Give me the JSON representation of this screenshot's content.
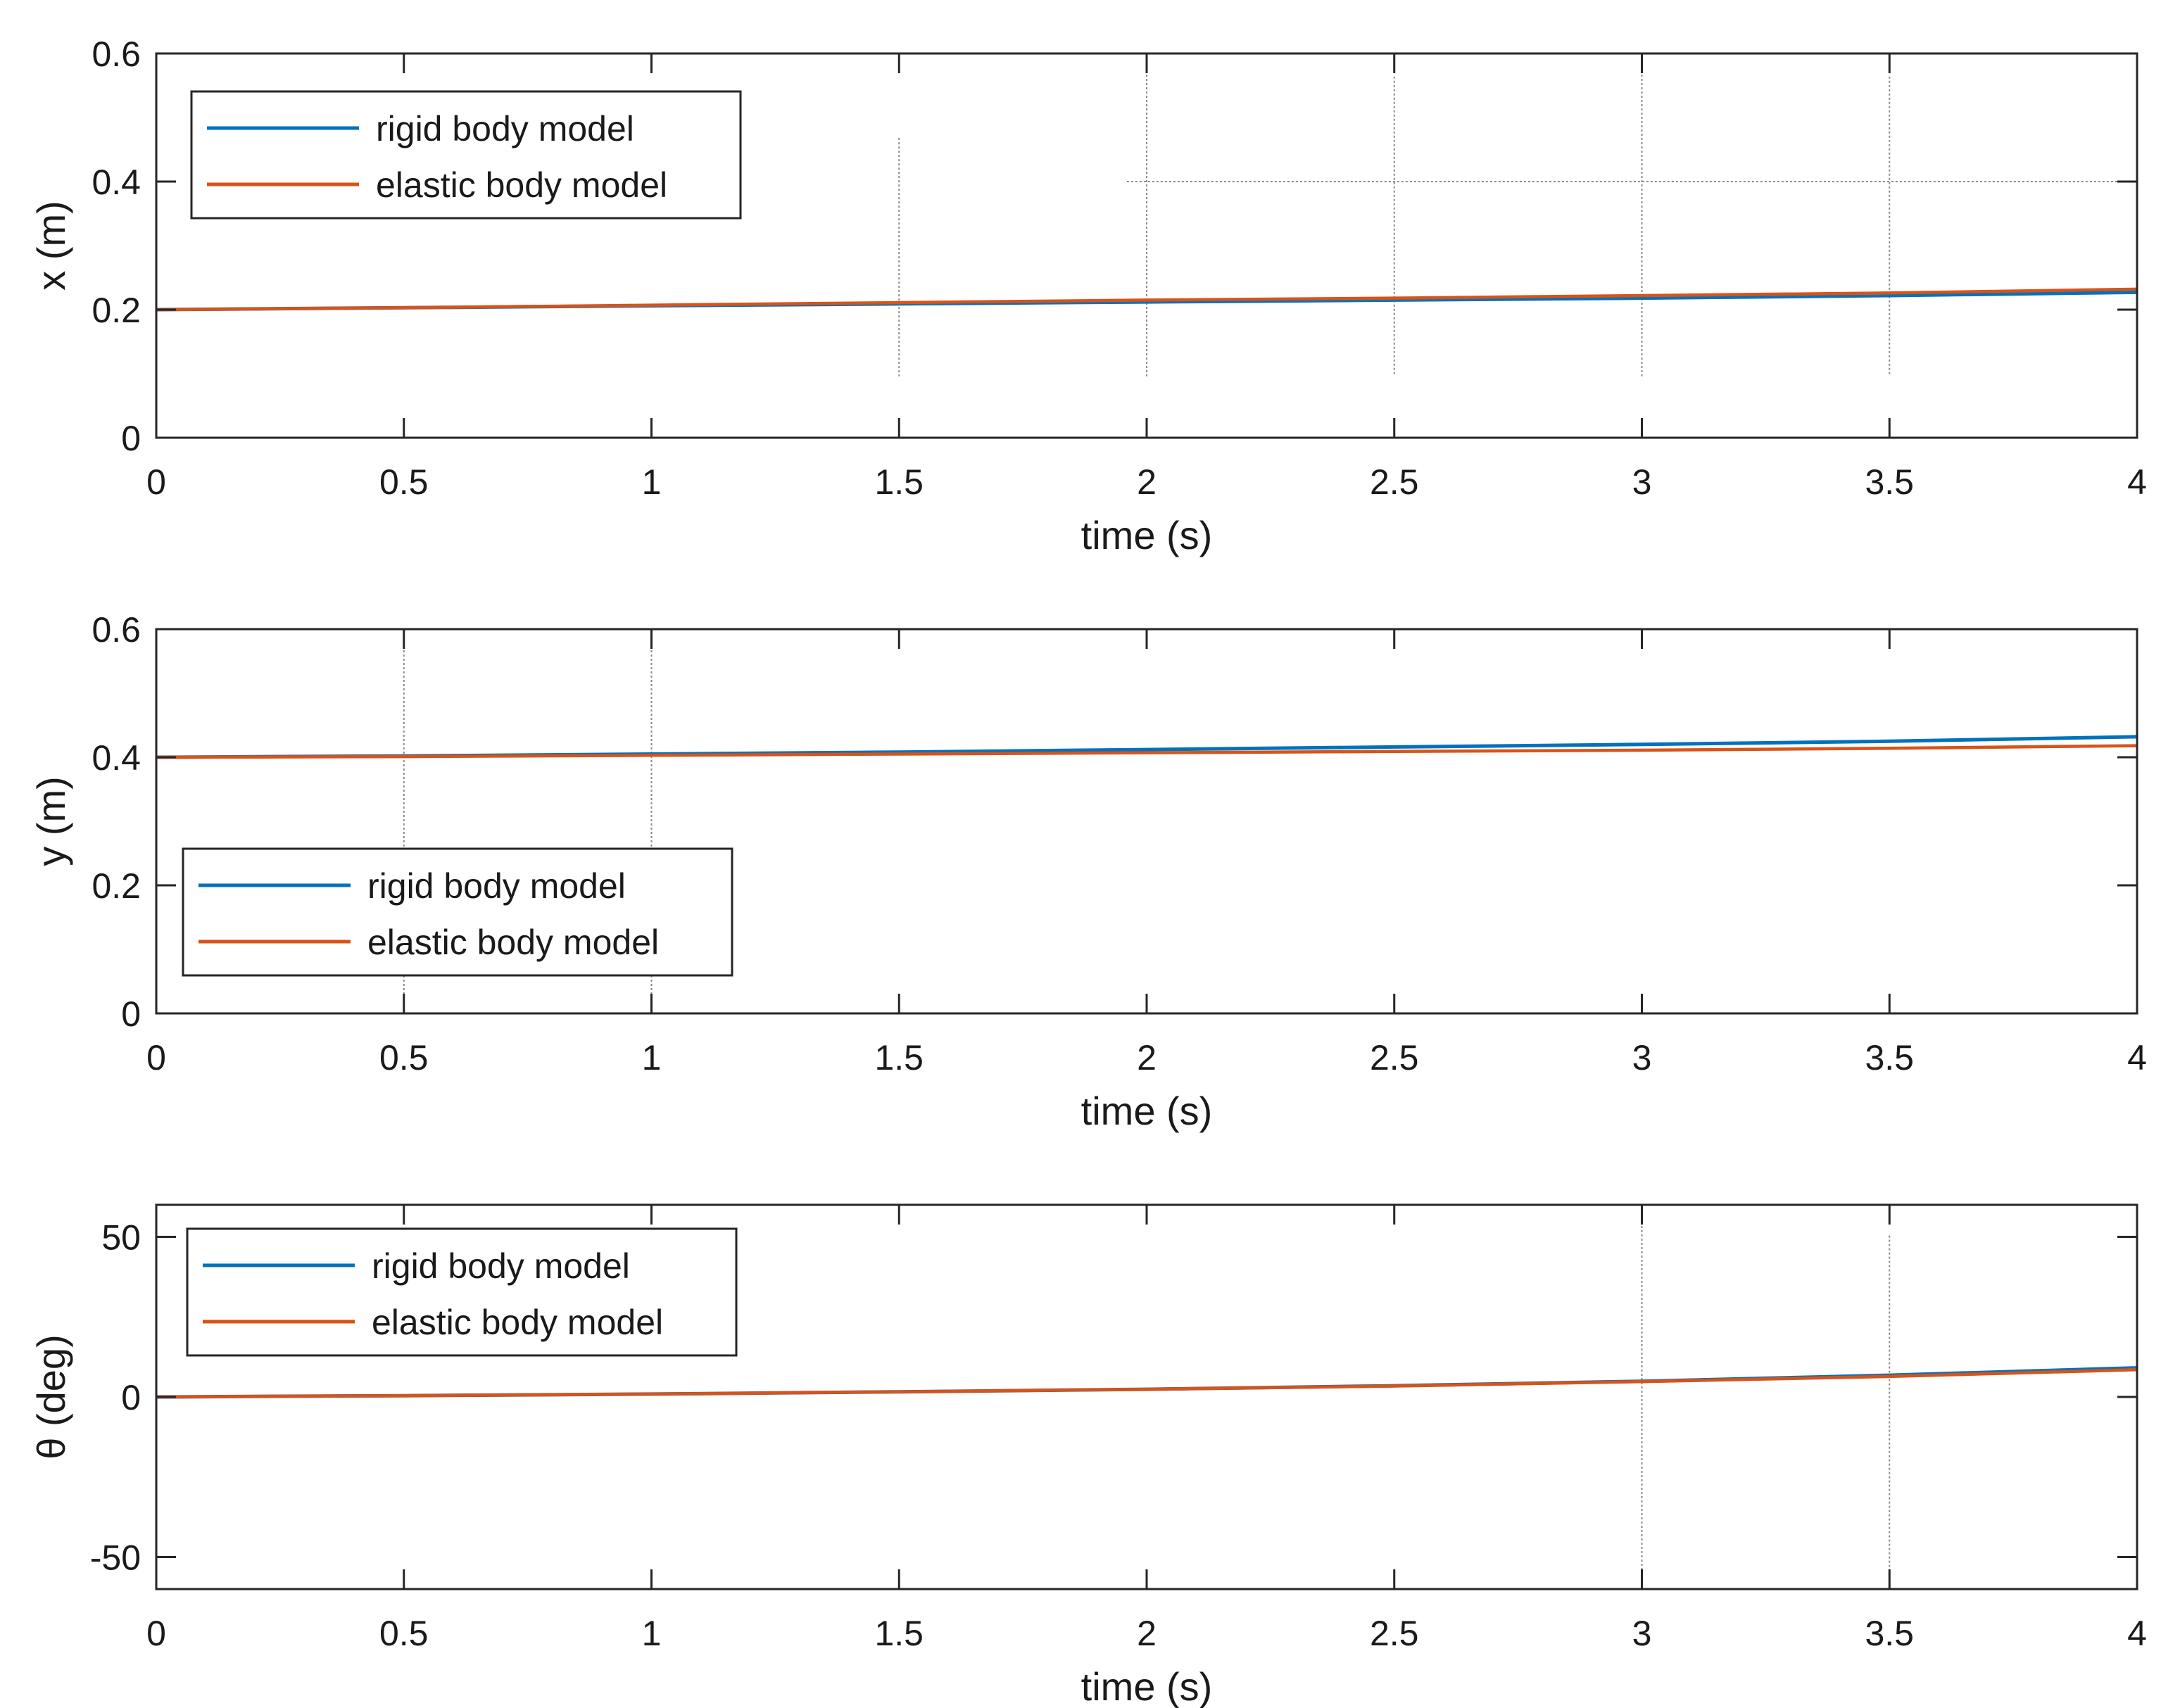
{
  "colors": {
    "rigid": "#0072BD",
    "elastic": "#D95319",
    "axes": "#262626",
    "grid": "#8c8c8c"
  },
  "chart_data": [
    {
      "type": "line",
      "xlabel": "time (s)",
      "ylabel": "x (m)",
      "xlim": [
        0,
        4
      ],
      "ylim": [
        0,
        0.6
      ],
      "xticks": [
        0,
        0.5,
        1,
        1.5,
        2,
        2.5,
        3,
        3.5,
        4
      ],
      "xtick_labels": [
        "0",
        "0.5",
        "1",
        "1.5",
        "2",
        "2.5",
        "3",
        "3.5",
        "4"
      ],
      "yticks": [
        0,
        0.2,
        0.4,
        0.6
      ],
      "ytick_labels": [
        "0",
        "0.2",
        "0.4",
        "0.6"
      ],
      "legend_location": "top-left",
      "x": [
        0,
        0.5,
        1,
        1.5,
        2,
        2.5,
        3,
        3.5,
        4
      ],
      "series": [
        {
          "name": "rigid body model",
          "values": [
            0.2,
            0.203,
            0.206,
            0.209,
            0.212,
            0.215,
            0.218,
            0.222,
            0.227
          ]
        },
        {
          "name": "elastic body model",
          "values": [
            0.2,
            0.203,
            0.207,
            0.211,
            0.215,
            0.218,
            0.222,
            0.226,
            0.232
          ]
        }
      ]
    },
    {
      "type": "line",
      "xlabel": "time (s)",
      "ylabel": "y (m)",
      "xlim": [
        0,
        4
      ],
      "ylim": [
        0,
        0.6
      ],
      "xticks": [
        0,
        0.5,
        1,
        1.5,
        2,
        2.5,
        3,
        3.5,
        4
      ],
      "xtick_labels": [
        "0",
        "0.5",
        "1",
        "1.5",
        "2",
        "2.5",
        "3",
        "3.5",
        "4"
      ],
      "yticks": [
        0,
        0.2,
        0.4,
        0.6
      ],
      "ytick_labels": [
        "0",
        "0.2",
        "0.4",
        "0.6"
      ],
      "legend_location": "bottom-left",
      "x": [
        0,
        0.5,
        1,
        1.5,
        2,
        2.5,
        3,
        3.5,
        4
      ],
      "series": [
        {
          "name": "rigid body model",
          "values": [
            0.4,
            0.402,
            0.405,
            0.408,
            0.412,
            0.416,
            0.42,
            0.425,
            0.432
          ]
        },
        {
          "name": "elastic body model",
          "values": [
            0.4,
            0.401,
            0.403,
            0.405,
            0.407,
            0.409,
            0.411,
            0.414,
            0.418
          ]
        }
      ]
    },
    {
      "type": "line",
      "xlabel": "time (s)",
      "ylabel": "θ (deg)",
      "xlim": [
        0,
        4
      ],
      "ylim": [
        -60,
        60
      ],
      "xticks": [
        0,
        0.5,
        1,
        1.5,
        2,
        2.5,
        3,
        3.5,
        4
      ],
      "xtick_labels": [
        "0",
        "0.5",
        "1",
        "1.5",
        "2",
        "2.5",
        "3",
        "3.5",
        "4"
      ],
      "yticks": [
        -50,
        0,
        50
      ],
      "ytick_labels": [
        "-50",
        "0",
        "50"
      ],
      "legend_location": "top-left",
      "x": [
        0,
        0.5,
        1,
        1.5,
        2,
        2.5,
        3,
        3.5,
        4
      ],
      "series": [
        {
          "name": "rigid body model",
          "values": [
            0.0,
            0.4,
            0.9,
            1.6,
            2.4,
            3.5,
            4.9,
            6.8,
            9.1
          ]
        },
        {
          "name": "elastic body model",
          "values": [
            0.0,
            0.4,
            0.9,
            1.6,
            2.4,
            3.4,
            4.8,
            6.4,
            8.5
          ]
        }
      ]
    }
  ]
}
